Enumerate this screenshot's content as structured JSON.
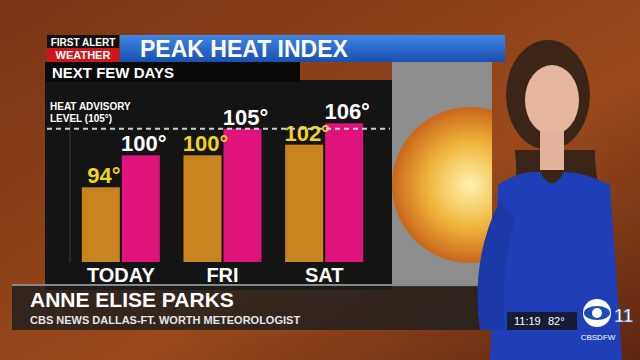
{
  "chart_data": {
    "type": "bar",
    "title": "PEAK HEAT INDEX",
    "subtitle": "NEXT FEW DAYS",
    "categories": [
      "TODAY",
      "FRI",
      "SAT"
    ],
    "series": [
      {
        "color": "#c8851f",
        "values": [
          94,
          100,
          102
        ],
        "value_labels": [
          "94°",
          "100°",
          "102°"
        ]
      },
      {
        "color": "#e0137c",
        "values": [
          100,
          105,
          106
        ],
        "value_labels": [
          "100°",
          "105°",
          "106°"
        ]
      }
    ],
    "ylim": [
      80,
      110
    ],
    "data_labels": true,
    "tick_labels": "x",
    "reference_line": {
      "value": 105,
      "label": "HEAT ADVISORY LEVEL (105°)"
    }
  },
  "broadcast": {
    "logo_top": "FIRST ALERT",
    "logo_bottom": "WEATHER",
    "name": "ANNE ELISE PARKS",
    "role": "CBS NEWS DALLAS-FT. WORTH METEOROLOGIST",
    "time": "11:19",
    "temperature": "82°",
    "channel": "11",
    "station": "CBSDFW"
  }
}
